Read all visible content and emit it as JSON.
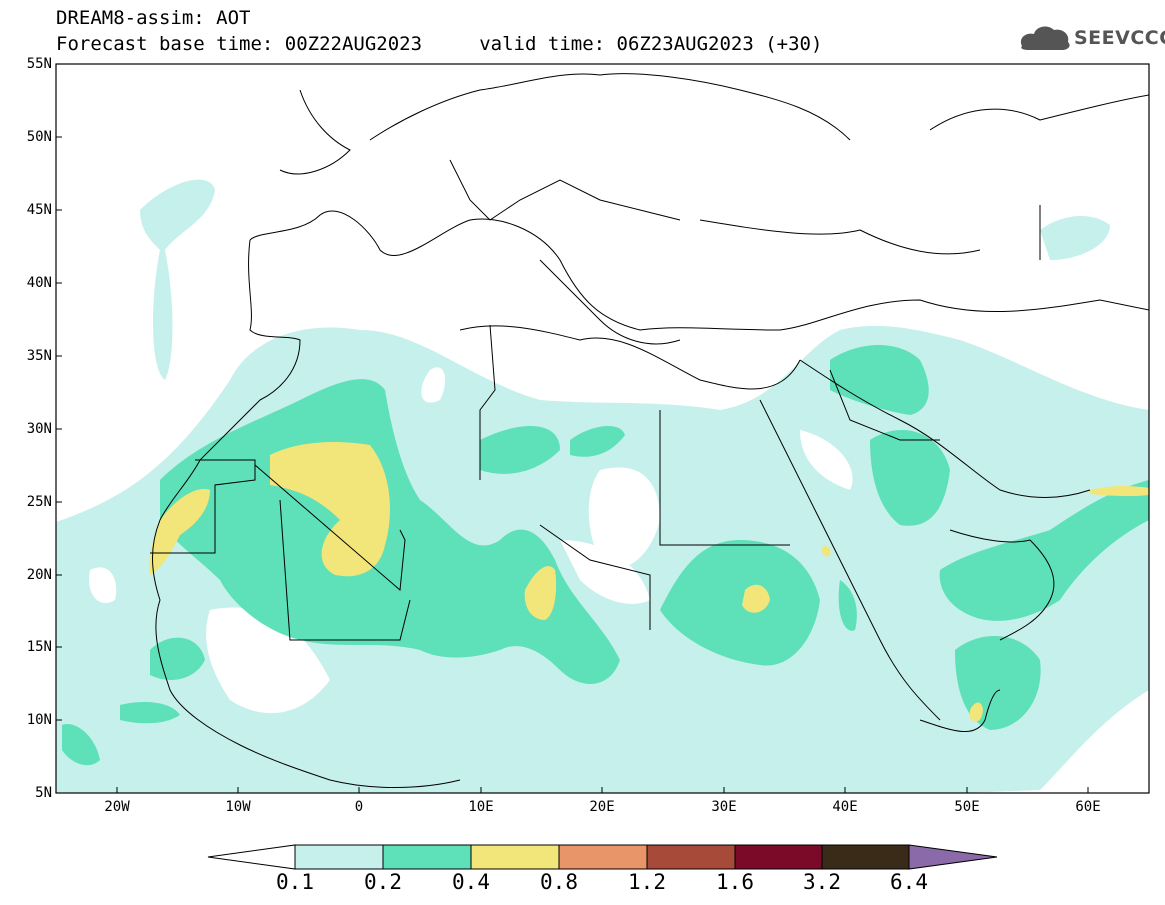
{
  "header": {
    "title": "DREAM8-assim: AOT",
    "subtitle": "Forecast base time: 00Z22AUG2023     valid time: 06Z23AUG2023 (+30)",
    "logo_text": "SEEVCCC"
  },
  "map": {
    "lat_labels": [
      "55N",
      "50N",
      "45N",
      "40N",
      "35N",
      "30N",
      "25N",
      "20N",
      "15N",
      "10N",
      "5N"
    ],
    "lon_labels": [
      "20W",
      "10W",
      "0",
      "10E",
      "20E",
      "30E",
      "40E",
      "50E",
      "60E"
    ],
    "lat_range": [
      5,
      55
    ],
    "lon_range": [
      -25,
      65
    ]
  },
  "colorbar": {
    "labels": [
      "0.1",
      "0.2",
      "0.4",
      "0.8",
      "1.2",
      "1.6",
      "3.2",
      "6.4"
    ],
    "colors": [
      "#ffffff",
      "#c6f0eb",
      "#5ee0b8",
      "#f2e57a",
      "#e9956a",
      "#a84a3a",
      "#7a0a28",
      "#3a2a18",
      "#8a6aa8"
    ]
  },
  "chart_data": {
    "type": "heatmap",
    "title": "DREAM8-assim: AOT",
    "variable": "AOT",
    "levels": [
      0.1,
      0.2,
      0.4,
      0.8,
      1.2,
      1.6,
      3.2,
      6.4
    ]
  }
}
